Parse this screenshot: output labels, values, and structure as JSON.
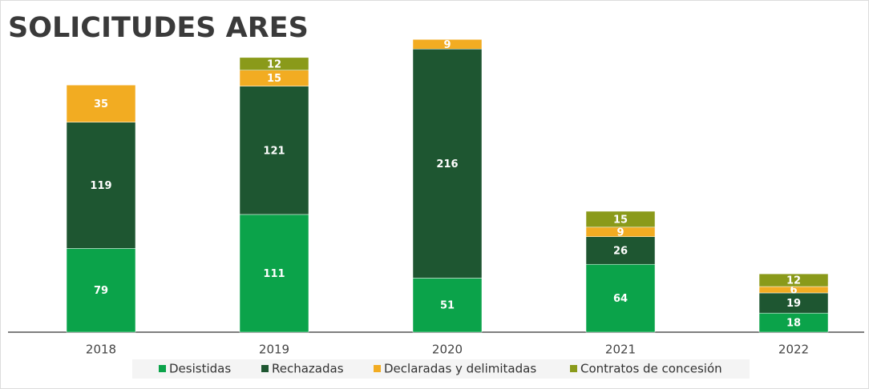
{
  "chart_data": {
    "type": "stacked_bar",
    "title": "SOLICITUDES ARES",
    "categories": [
      "2018",
      "2019",
      "2020",
      "2021",
      "2022"
    ],
    "series": [
      {
        "name": "Desistidas",
        "color": "#0ba34a",
        "values": [
          79,
          111,
          51,
          64,
          18
        ]
      },
      {
        "name": "Rechazadas",
        "color": "#1e5631",
        "values": [
          119,
          121,
          216,
          26,
          19
        ]
      },
      {
        "name": "Declaradas y delimitadas",
        "color": "#f2ac22",
        "values": [
          35,
          15,
          9,
          9,
          6
        ]
      },
      {
        "name": "Contratos de concesión",
        "color": "#8a9a1a",
        "values": [
          null,
          12,
          null,
          15,
          12
        ]
      }
    ],
    "ylim": [
      0,
      280
    ],
    "legend": "bottom"
  }
}
